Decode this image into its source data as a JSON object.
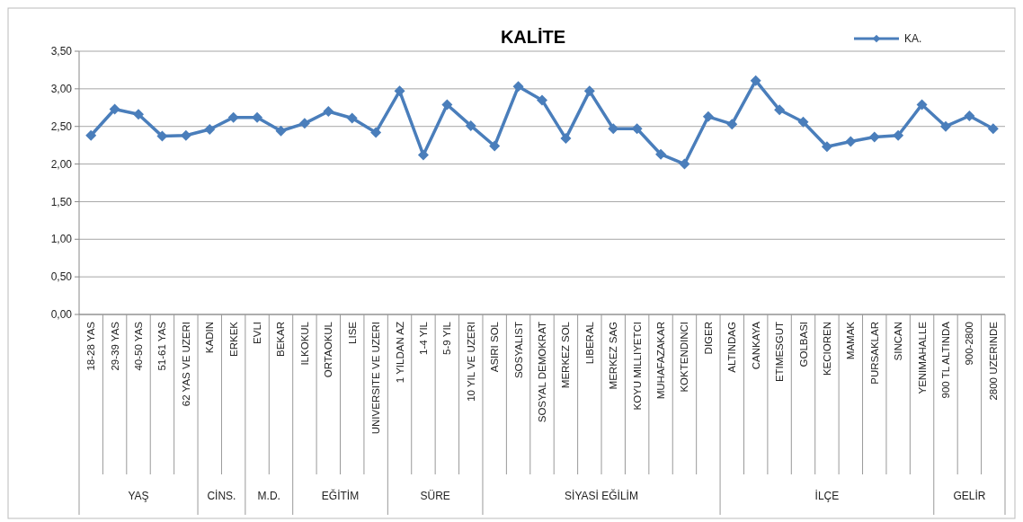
{
  "chart_data": {
    "type": "line",
    "title": "KALİTE",
    "categories": [
      "18-28 YAS",
      "29-39 YAS",
      "40-50 YAS",
      "51-61 YAS",
      "62 YAS VE UZERI",
      "KADIN",
      "ERKEK",
      "EVLI",
      "BEKAR",
      "ILKOKUL",
      "ORTAOKUL",
      "LISE",
      "UNIVERSITE VE UZERI",
      "1 YILDAN AZ",
      "1-4 YIL",
      "5-9 YIL",
      "10 YIL VE UZERI",
      "ASIRI SOL",
      "SOSYALIST",
      "SOSYAL DEMOKRAT",
      "MERKEZ SOL",
      "LIBERAL",
      "MERKEZ SAG",
      "KOYU MILLIYETCI",
      "MUHAFAZAKAR",
      "KOKTENDINCI",
      "DIGER",
      "ALTINDAG",
      "CANKAYA",
      "ETIMESGUT",
      "GOLBASI",
      "KECIOREN",
      "MAMAK",
      "PURSAKLAR",
      "SINCAN",
      "YENIMAHALLE",
      "900 TL ALTINDA",
      "900-2800",
      "2800 UZERINDE"
    ],
    "series": [
      {
        "name": "KA.",
        "color": "#4a7ebb",
        "values": [
          2.38,
          2.73,
          2.66,
          2.37,
          2.38,
          2.46,
          2.62,
          2.62,
          2.44,
          2.54,
          2.7,
          2.61,
          2.42,
          2.97,
          2.12,
          2.79,
          2.51,
          2.24,
          3.03,
          2.85,
          2.34,
          2.97,
          2.47,
          2.47,
          2.13,
          2.0,
          2.63,
          2.53,
          3.11,
          2.72,
          2.56,
          2.23,
          2.3,
          2.36,
          2.38,
          2.79,
          2.5,
          2.64,
          2.47
        ]
      }
    ],
    "ylim": [
      0,
      3.5
    ],
    "yticks": [
      {
        "value": 0,
        "label": "0,00"
      },
      {
        "value": 0.5,
        "label": "0,50"
      },
      {
        "value": 1,
        "label": "1,00"
      },
      {
        "value": 1.5,
        "label": "1,50"
      },
      {
        "value": 2,
        "label": "2,00"
      },
      {
        "value": 2.5,
        "label": "2,50"
      },
      {
        "value": 3,
        "label": "3,00"
      },
      {
        "value": 3.5,
        "label": "3,50"
      }
    ],
    "grid": "y",
    "legend": "top right",
    "marker": "diamond",
    "line_style": "solid",
    "annotations": [
      "YAŞ",
      "CİNS.",
      "M.D.",
      "EĞİTİM",
      "SÜRE",
      "SİYASİ EĞİLİM",
      "İLÇE",
      "GELİR"
    ]
  }
}
